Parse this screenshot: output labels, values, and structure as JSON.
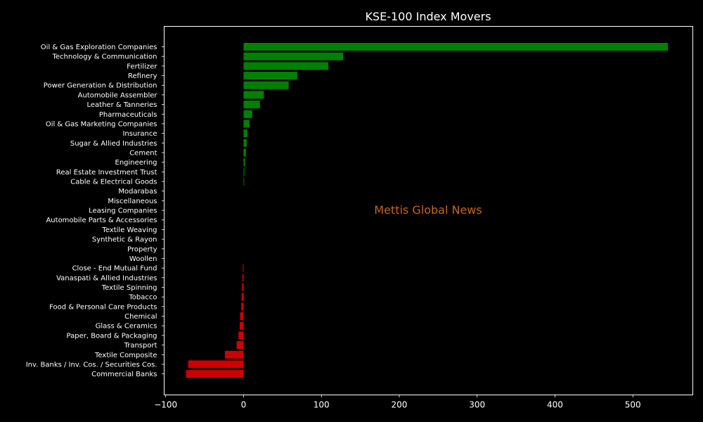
{
  "chart_data": {
    "type": "bar",
    "orientation": "horizontal",
    "title": "KSE-100 Index Movers",
    "xlabel": "",
    "ylabel": "",
    "xlim": [
      -102,
      577
    ],
    "xticks": [
      -100,
      0,
      100,
      200,
      300,
      400,
      500
    ],
    "grid": false,
    "watermark": "Mettis Global News",
    "categories": [
      "Oil & Gas Exploration Companies",
      "Technology & Communication",
      "Fertilizer",
      "Refinery",
      "Power Generation & Distribution",
      "Automobile Assembler",
      "Leather & Tanneries",
      "Pharmaceuticals",
      "Oil & Gas Marketing Companies",
      "Insurance",
      "Sugar & Allied Industries",
      "Cement",
      "Engineering",
      "Real Estate Investment Trust",
      "Cable & Electrical Goods",
      "Modarabas",
      "Miscellaneous",
      "Leasing Companies",
      "Automobile Parts & Accessories",
      "Textile Weaving",
      "Synthetic & Rayon",
      "Property",
      "Woollen",
      "Close - End Mutual Fund",
      "Vanaspati & Allied Industries",
      "Textile Spinning",
      "Tobacco",
      "Food & Personal Care Products",
      "Chemical",
      "Glass & Ceramics",
      "Paper, Board & Packaging",
      "Transport",
      "Textile Composite",
      "Inv. Banks / Inv. Cos. / Securities Cos.",
      "Commercial Banks"
    ],
    "values": [
      545,
      128,
      109,
      69,
      58,
      26,
      21,
      11,
      7.5,
      5,
      4,
      3,
      2,
      1,
      0.8,
      0,
      0,
      0,
      0,
      0,
      0,
      0,
      0,
      -1,
      -1.5,
      -2,
      -2.5,
      -3,
      -4.5,
      -5,
      -6.5,
      -9,
      -24,
      -71,
      -74
    ],
    "colors": {
      "positive": "#008000",
      "negative": "#cc0000",
      "axes": "#ffffff",
      "background": "#000000"
    }
  }
}
